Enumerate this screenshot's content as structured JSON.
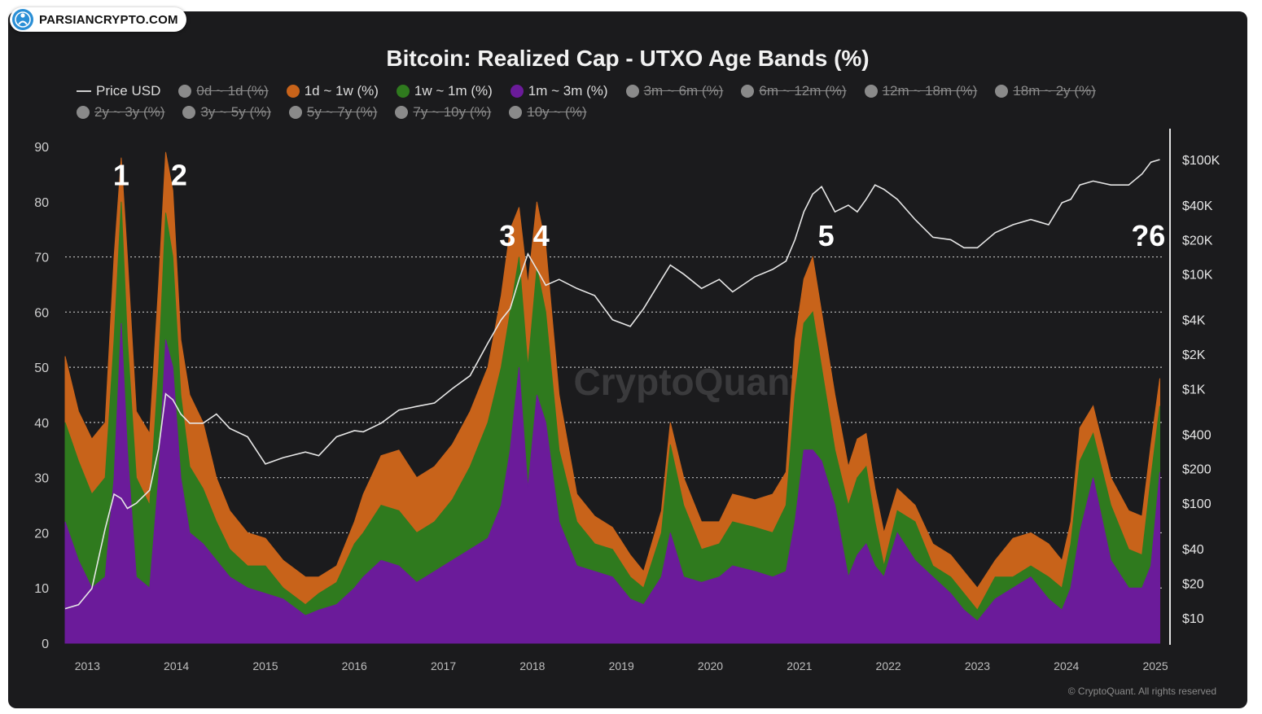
{
  "badge": {
    "text": "PARSIANCRYPTO.COM"
  },
  "colors": {
    "background": "#1b1b1d",
    "orange": "#c8631a",
    "green": "#2f7a1e",
    "purple": "#6b1b9a",
    "price": "#e6e6e6",
    "grid": "#bdbdbd"
  },
  "chart_data": {
    "type": "area",
    "title": "Bitcoin: Realized Cap - UTXO Age Bands (%)",
    "legend": [
      {
        "label": "Price USD",
        "kind": "line",
        "color": "#e6e6e6",
        "enabled": true
      },
      {
        "label": "0d ~ 1d (%)",
        "color": "#8a8a8a",
        "enabled": false
      },
      {
        "label": "1d ~ 1w (%)",
        "color": "#c8631a",
        "enabled": true
      },
      {
        "label": "1w ~ 1m (%)",
        "color": "#2f7a1e",
        "enabled": true
      },
      {
        "label": "1m ~ 3m (%)",
        "color": "#6b1b9a",
        "enabled": true
      },
      {
        "label": "3m ~ 6m (%)",
        "color": "#8a8a8a",
        "enabled": false
      },
      {
        "label": "6m ~ 12m (%)",
        "color": "#8a8a8a",
        "enabled": false
      },
      {
        "label": "12m ~ 18m (%)",
        "color": "#8a8a8a",
        "enabled": false
      },
      {
        "label": "18m ~ 2y (%)",
        "color": "#8a8a8a",
        "enabled": false
      },
      {
        "label": "2y ~ 3y (%)",
        "color": "#8a8a8a",
        "enabled": false
      },
      {
        "label": "3y ~ 5y (%)",
        "color": "#8a8a8a",
        "enabled": false
      },
      {
        "label": "5y ~ 7y (%)",
        "color": "#8a8a8a",
        "enabled": false
      },
      {
        "label": "7y ~ 10y (%)",
        "color": "#8a8a8a",
        "enabled": false
      },
      {
        "label": "10y ~ (%)",
        "color": "#8a8a8a",
        "enabled": false
      }
    ],
    "x_ticks": [
      "2013",
      "2014",
      "2015",
      "2016",
      "2017",
      "2018",
      "2019",
      "2020",
      "2021",
      "2022",
      "2023",
      "2024",
      "2025"
    ],
    "xlim": [
      2012.75,
      2025.1
    ],
    "y_left": {
      "ticks": [
        0,
        10,
        20,
        30,
        40,
        50,
        60,
        70,
        80,
        90
      ],
      "ylim": [
        0,
        90
      ]
    },
    "y_right": {
      "scale": "log",
      "tick_labels": [
        "$10",
        "$20",
        "$40",
        "$100",
        "$200",
        "$400",
        "$1K",
        "$2K",
        "$4K",
        "$10K",
        "$20K",
        "$40K",
        "$100K"
      ],
      "tick_values": [
        10,
        20,
        40,
        100,
        200,
        400,
        1000,
        2000,
        4000,
        10000,
        20000,
        40000,
        100000
      ],
      "ylim": [
        6,
        130000
      ]
    },
    "gridlines_dotted": [
      10,
      20,
      30,
      40,
      50,
      60,
      70
    ],
    "x": [
      2012.75,
      2012.9,
      2013.05,
      2013.2,
      2013.3,
      2013.38,
      2013.45,
      2013.55,
      2013.7,
      2013.8,
      2013.88,
      2013.96,
      2014.05,
      2014.15,
      2014.3,
      2014.45,
      2014.6,
      2014.8,
      2015.0,
      2015.2,
      2015.45,
      2015.6,
      2015.8,
      2016.0,
      2016.1,
      2016.3,
      2016.5,
      2016.7,
      2016.9,
      2017.1,
      2017.3,
      2017.5,
      2017.65,
      2017.75,
      2017.85,
      2017.95,
      2018.05,
      2018.15,
      2018.3,
      2018.5,
      2018.7,
      2018.9,
      2019.1,
      2019.25,
      2019.45,
      2019.55,
      2019.7,
      2019.9,
      2020.1,
      2020.25,
      2020.5,
      2020.7,
      2020.85,
      2020.95,
      2021.05,
      2021.15,
      2021.25,
      2021.4,
      2021.55,
      2021.65,
      2021.75,
      2021.85,
      2021.95,
      2022.1,
      2022.3,
      2022.5,
      2022.7,
      2022.85,
      2023.0,
      2023.2,
      2023.4,
      2023.6,
      2023.8,
      2023.95,
      2024.05,
      2024.15,
      2024.3,
      2024.5,
      2024.7,
      2024.85,
      2024.95,
      2025.05
    ],
    "series": [
      {
        "name": "1m ~ 3m (%)",
        "values": [
          22,
          15,
          10,
          12,
          30,
          58,
          35,
          12,
          10,
          30,
          55,
          50,
          30,
          20,
          18,
          15,
          12,
          10,
          9,
          8,
          5,
          6,
          7,
          10,
          12,
          15,
          14,
          11,
          13,
          15,
          17,
          19,
          25,
          35,
          50,
          28,
          45,
          40,
          22,
          14,
          13,
          12,
          8,
          7,
          12,
          20,
          12,
          11,
          12,
          14,
          13,
          12,
          13,
          22,
          35,
          35,
          33,
          25,
          12,
          16,
          18,
          14,
          12,
          20,
          15,
          12,
          9,
          6,
          4,
          8,
          10,
          12,
          8,
          6,
          10,
          20,
          30,
          15,
          10,
          10,
          14,
          31
        ]
      },
      {
        "name": "1w ~ 1m (%)",
        "values": [
          40,
          33,
          27,
          30,
          55,
          80,
          55,
          30,
          25,
          50,
          78,
          70,
          45,
          32,
          28,
          22,
          17,
          14,
          14,
          10,
          7,
          9,
          11,
          18,
          20,
          25,
          24,
          20,
          22,
          26,
          32,
          40,
          50,
          60,
          70,
          50,
          68,
          60,
          35,
          22,
          18,
          17,
          12,
          10,
          20,
          36,
          25,
          17,
          18,
          22,
          21,
          20,
          25,
          45,
          58,
          60,
          50,
          35,
          25,
          30,
          32,
          22,
          14,
          24,
          22,
          14,
          12,
          9,
          6,
          12,
          12,
          14,
          12,
          10,
          18,
          33,
          38,
          25,
          17,
          16,
          30,
          43
        ]
      },
      {
        "name": "1d ~ 1w (%)",
        "values": [
          52,
          42,
          37,
          40,
          70,
          88,
          70,
          42,
          38,
          65,
          89,
          82,
          55,
          45,
          40,
          30,
          24,
          20,
          19,
          15,
          12,
          12,
          14,
          22,
          27,
          34,
          35,
          30,
          32,
          36,
          42,
          50,
          63,
          75,
          79,
          65,
          80,
          72,
          45,
          27,
          23,
          21,
          16,
          13,
          24,
          40,
          30,
          22,
          22,
          27,
          26,
          27,
          31,
          55,
          66,
          70,
          60,
          45,
          32,
          37,
          38,
          28,
          20,
          28,
          25,
          18,
          16,
          13,
          10,
          15,
          19,
          20,
          18,
          15,
          22,
          39,
          43,
          30,
          24,
          23,
          36,
          48
        ]
      },
      {
        "name": "Price USD",
        "values": [
          12,
          13,
          18,
          60,
          120,
          110,
          90,
          100,
          130,
          300,
          900,
          800,
          600,
          500,
          500,
          600,
          450,
          380,
          220,
          250,
          280,
          260,
          380,
          430,
          420,
          500,
          650,
          700,
          750,
          1000,
          1300,
          2500,
          4000,
          5000,
          9000,
          15000,
          11000,
          8000,
          9000,
          7500,
          6500,
          4000,
          3500,
          5000,
          9000,
          12000,
          10000,
          7500,
          9000,
          7000,
          9500,
          11000,
          13000,
          20000,
          35000,
          50000,
          58000,
          35000,
          40000,
          35000,
          45000,
          60000,
          55000,
          45000,
          30000,
          21000,
          20000,
          17000,
          17000,
          23000,
          27000,
          30000,
          27000,
          42000,
          45000,
          60000,
          65000,
          60000,
          60000,
          75000,
          95000,
          100000
        ]
      }
    ],
    "annotations": [
      {
        "text": "1",
        "x": 2013.38,
        "y": 83
      },
      {
        "text": "2",
        "x": 2014.03,
        "y": 83
      },
      {
        "text": "3",
        "x": 2017.72,
        "y": 72
      },
      {
        "text": "4",
        "x": 2018.1,
        "y": 72
      },
      {
        "text": "5",
        "x": 2021.3,
        "y": 72
      },
      {
        "text": "?6",
        "x": 2024.92,
        "y": 72
      }
    ],
    "watermark": "CryptoQuant",
    "credit": "© CryptoQuant. All rights reserved"
  }
}
